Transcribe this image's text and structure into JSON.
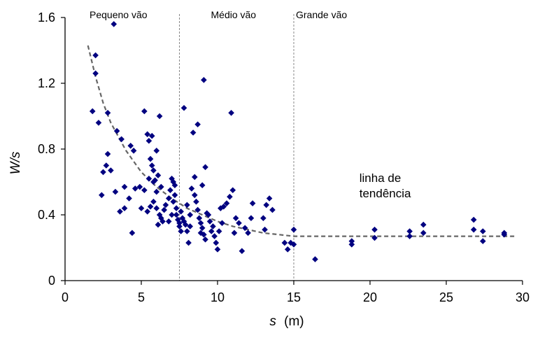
{
  "chart_data": {
    "type": "scatter",
    "xlabel_var": "s",
    "xlabel_unit": "(m)",
    "ylabel": "W/s",
    "xlim": [
      0,
      30
    ],
    "ylim": [
      0,
      1.6
    ],
    "xticks": [
      "0",
      "5",
      "10",
      "15",
      "20",
      "25",
      "30"
    ],
    "yticks": [
      "0",
      "0.4",
      "0.8",
      "1.2",
      "1.6"
    ],
    "grid": false,
    "zones": [
      {
        "label": "Pequeno vão",
        "from": 0,
        "to": 7.5
      },
      {
        "label": "Médio vão",
        "from": 7.5,
        "to": 15
      },
      {
        "label": "Grande vão",
        "from": 15,
        "to": 30
      }
    ],
    "boundaries": [
      7.5,
      15
    ],
    "annotation": {
      "lines": [
        "linha de",
        "tendência"
      ],
      "x": 19.3,
      "y": 0.6
    },
    "trend_line": {
      "style": "dashed",
      "color": "#666666",
      "points": [
        [
          1.5,
          1.43
        ],
        [
          2,
          1.24
        ],
        [
          2.5,
          1.08
        ],
        [
          3,
          0.96
        ],
        [
          4,
          0.79
        ],
        [
          5,
          0.66
        ],
        [
          6,
          0.57
        ],
        [
          7,
          0.5
        ],
        [
          8,
          0.44
        ],
        [
          9,
          0.4
        ],
        [
          10,
          0.36
        ],
        [
          11,
          0.33
        ],
        [
          12,
          0.31
        ],
        [
          13,
          0.29
        ],
        [
          14,
          0.28
        ],
        [
          15,
          0.27
        ],
        [
          20,
          0.27
        ],
        [
          25,
          0.27
        ],
        [
          29.5,
          0.27
        ]
      ]
    },
    "marker_color": "#000080",
    "points": [
      [
        2.0,
        1.37
      ],
      [
        2.0,
        1.26
      ],
      [
        3.2,
        1.56
      ],
      [
        1.8,
        1.03
      ],
      [
        2.2,
        0.96
      ],
      [
        2.8,
        1.02
      ],
      [
        3.4,
        0.91
      ],
      [
        3.7,
        0.86
      ],
      [
        2.5,
        0.66
      ],
      [
        2.7,
        0.7
      ],
      [
        2.8,
        0.77
      ],
      [
        3.0,
        0.67
      ],
      [
        2.4,
        0.52
      ],
      [
        3.3,
        0.54
      ],
      [
        3.6,
        0.42
      ],
      [
        3.9,
        0.57
      ],
      [
        4.3,
        0.82
      ],
      [
        4.5,
        0.79
      ],
      [
        4.6,
        0.56
      ],
      [
        4.4,
        0.29
      ],
      [
        3.9,
        0.44
      ],
      [
        4.2,
        0.5
      ],
      [
        4.9,
        0.57
      ],
      [
        5.0,
        0.44
      ],
      [
        5.2,
        1.03
      ],
      [
        5.4,
        0.89
      ],
      [
        5.5,
        0.85
      ],
      [
        5.7,
        0.88
      ],
      [
        5.6,
        0.74
      ],
      [
        5.7,
        0.7
      ],
      [
        5.8,
        0.67
      ],
      [
        5.5,
        0.62
      ],
      [
        5.2,
        0.55
      ],
      [
        5.8,
        0.6
      ],
      [
        5.9,
        0.61
      ],
      [
        6.0,
        0.54
      ],
      [
        6.2,
        1.0
      ],
      [
        6.0,
        0.79
      ],
      [
        6.1,
        0.64
      ],
      [
        6.3,
        0.57
      ],
      [
        5.4,
        0.42
      ],
      [
        5.6,
        0.45
      ],
      [
        5.8,
        0.48
      ],
      [
        6.0,
        0.44
      ],
      [
        6.2,
        0.4
      ],
      [
        6.3,
        0.38
      ],
      [
        6.4,
        0.36
      ],
      [
        6.5,
        0.43
      ],
      [
        6.6,
        0.46
      ],
      [
        6.8,
        0.5
      ],
      [
        6.9,
        0.55
      ],
      [
        7.0,
        0.62
      ],
      [
        7.1,
        0.6
      ],
      [
        7.2,
        0.58
      ],
      [
        7.2,
        0.52
      ],
      [
        7.1,
        0.48
      ],
      [
        7.3,
        0.44
      ],
      [
        7.3,
        0.4
      ],
      [
        7.4,
        0.37
      ],
      [
        7.5,
        0.35
      ],
      [
        7.5,
        0.33
      ],
      [
        7.6,
        0.42
      ],
      [
        7.7,
        0.38
      ],
      [
        7.8,
        0.36
      ],
      [
        7.9,
        0.34
      ],
      [
        8.0,
        0.46
      ],
      [
        8.0,
        0.3
      ],
      [
        8.1,
        0.23
      ],
      [
        8.2,
        0.4
      ],
      [
        8.3,
        0.56
      ],
      [
        8.5,
        0.52
      ],
      [
        8.6,
        0.48
      ],
      [
        8.7,
        0.43
      ],
      [
        8.8,
        0.38
      ],
      [
        8.9,
        0.35
      ],
      [
        9.0,
        0.32
      ],
      [
        9.1,
        0.28
      ],
      [
        9.2,
        0.25
      ],
      [
        7.8,
        1.05
      ],
      [
        8.4,
        0.9
      ],
      [
        8.7,
        0.95
      ],
      [
        9.1,
        1.22
      ],
      [
        9.2,
        0.69
      ],
      [
        8.5,
        0.63
      ],
      [
        9.0,
        0.58
      ],
      [
        9.4,
        0.4
      ],
      [
        9.5,
        0.36
      ],
      [
        9.6,
        0.3
      ],
      [
        9.7,
        0.33
      ],
      [
        9.8,
        0.27
      ],
      [
        9.9,
        0.23
      ],
      [
        10.0,
        0.19
      ],
      [
        10.1,
        0.3
      ],
      [
        10.2,
        0.44
      ],
      [
        10.4,
        0.45
      ],
      [
        10.6,
        0.47
      ],
      [
        10.8,
        0.51
      ],
      [
        11.0,
        0.55
      ],
      [
        11.2,
        0.38
      ],
      [
        11.4,
        0.35
      ],
      [
        10.9,
        1.02
      ],
      [
        11.6,
        0.18
      ],
      [
        11.8,
        0.32
      ],
      [
        12.0,
        0.29
      ],
      [
        12.2,
        0.38
      ],
      [
        12.3,
        0.47
      ],
      [
        13.0,
        0.38
      ],
      [
        13.1,
        0.31
      ],
      [
        13.2,
        0.46
      ],
      [
        13.4,
        0.5
      ],
      [
        13.6,
        0.43
      ],
      [
        14.4,
        0.23
      ],
      [
        14.6,
        0.19
      ],
      [
        14.8,
        0.23
      ],
      [
        15.0,
        0.22
      ],
      [
        15.0,
        0.31
      ],
      [
        16.4,
        0.13
      ],
      [
        18.8,
        0.22
      ],
      [
        18.8,
        0.24
      ],
      [
        20.3,
        0.26
      ],
      [
        20.3,
        0.31
      ],
      [
        22.6,
        0.27
      ],
      [
        22.6,
        0.3
      ],
      [
        23.5,
        0.29
      ],
      [
        23.5,
        0.34
      ],
      [
        26.8,
        0.37
      ],
      [
        26.8,
        0.31
      ],
      [
        27.4,
        0.24
      ],
      [
        27.4,
        0.3
      ],
      [
        28.8,
        0.28
      ],
      [
        28.8,
        0.29
      ],
      [
        6.8,
        0.36
      ],
      [
        7.6,
        0.3
      ],
      [
        8.2,
        0.33
      ],
      [
        6.1,
        0.34
      ],
      [
        9.3,
        0.41
      ],
      [
        10.3,
        0.35
      ],
      [
        11.1,
        0.29
      ],
      [
        7.0,
        0.4
      ],
      [
        8.9,
        0.29
      ]
    ]
  }
}
